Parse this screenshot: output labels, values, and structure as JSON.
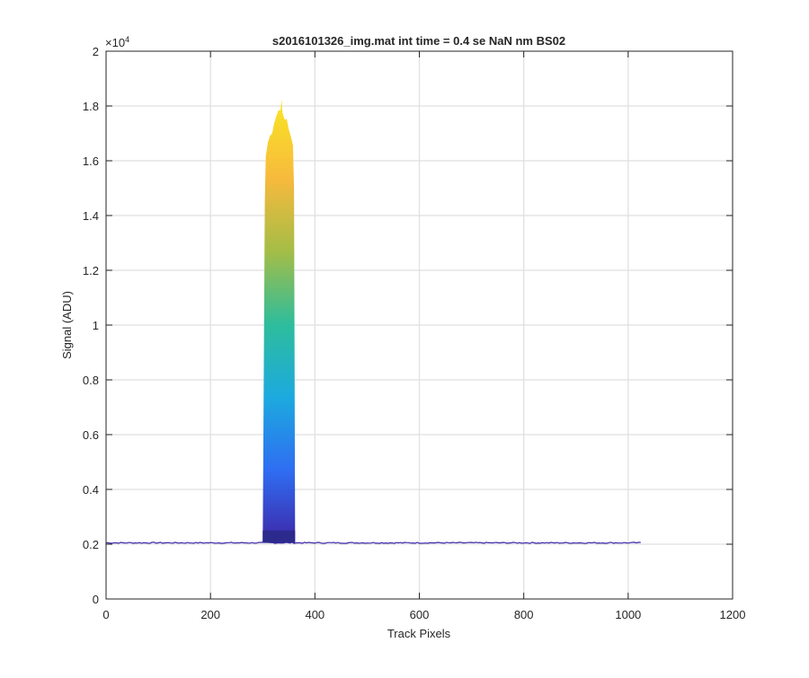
{
  "chart_data": {
    "type": "line",
    "title": "s2016101326_img.mat int time = 0.4 se  NaN nm BS02",
    "xlabel": "Track Pixels",
    "ylabel": "Signal (ADU)",
    "xlim": [
      0,
      1200
    ],
    "ylim": [
      0,
      20000
    ],
    "xticks": [
      0,
      200,
      400,
      600,
      800,
      1000,
      1200
    ],
    "xtick_labels": [
      "0",
      "200",
      "400",
      "600",
      "800",
      "1000",
      "1200"
    ],
    "yticks": [
      0,
      2000,
      4000,
      6000,
      8000,
      10000,
      12000,
      14000,
      16000,
      18000,
      20000
    ],
    "ytick_labels": [
      "0",
      "0.2",
      "0.4",
      "0.6",
      "0.8",
      "1",
      "1.2",
      "1.4",
      "1.6",
      "1.8",
      "2"
    ],
    "y_exponent_label": "×10",
    "y_exponent_power": "4",
    "grid": true,
    "colormap": [
      "#3e26a8",
      "#2f6ef2",
      "#1caadf",
      "#2ebd9c",
      "#a4bd47",
      "#f7ba3d",
      "#f9e225"
    ],
    "baseline": {
      "x_start": 0,
      "x_end": 1024,
      "level": 2050
    },
    "peak": {
      "x_left": 300,
      "x_right": 362,
      "envelope": [
        [
          300,
          2100
        ],
        [
          302,
          8000
        ],
        [
          304,
          14500
        ],
        [
          306,
          16200
        ],
        [
          310,
          16800
        ],
        [
          314,
          17000
        ],
        [
          318,
          17100
        ],
        [
          322,
          17300
        ],
        [
          326,
          17600
        ],
        [
          330,
          17700
        ],
        [
          334,
          17900
        ],
        [
          336,
          18300
        ],
        [
          338,
          17800
        ],
        [
          342,
          17600
        ],
        [
          346,
          17400
        ],
        [
          350,
          17100
        ],
        [
          354,
          16800
        ],
        [
          358,
          16500
        ],
        [
          360,
          15000
        ],
        [
          361,
          9000
        ],
        [
          362,
          2100
        ]
      ]
    }
  }
}
